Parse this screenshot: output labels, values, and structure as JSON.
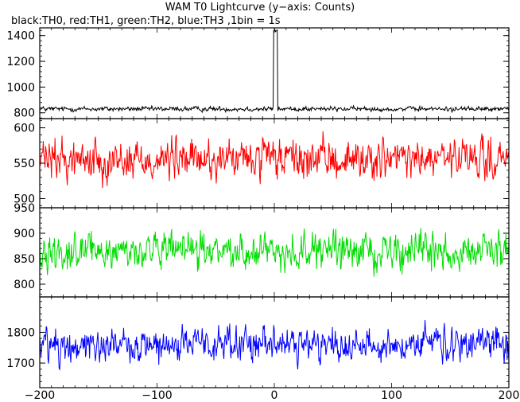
{
  "chart_data": {
    "type": "line",
    "title": "WAM T0 Lightcurve (y−axis: Counts)",
    "subtitle": "black:TH0, red:TH1, green:TH2, blue:TH3 ,1bin = 1s",
    "x_range": [
      -200,
      200
    ],
    "x_ticks": [
      -200,
      -100,
      0,
      100,
      200
    ],
    "shared_x_axis": true,
    "series": [
      {
        "color": "#000000",
        "ylim": [
          755,
          1460
        ],
        "y_ticks": [
          800,
          1000,
          1200,
          1400
        ],
        "baseline_approx": 830,
        "noise_amplitude_approx": 30,
        "spike": {
          "x": 1,
          "peak": 1450,
          "width_s": 3
        }
      },
      {
        "color": "#ff0000",
        "ylim": [
          487,
          613
        ],
        "y_ticks": [
          500,
          550,
          600
        ],
        "baseline_approx": 555,
        "noise_amplitude_approx": 45
      },
      {
        "color": "#00dd00",
        "ylim": [
          775,
          950
        ],
        "y_ticks": [
          800,
          850,
          900,
          950
        ],
        "baseline_approx": 865,
        "noise_amplitude_approx": 55
      },
      {
        "color": "#0000ff",
        "ylim": [
          1620,
          1915
        ],
        "y_ticks": [
          1700,
          1800
        ],
        "baseline_approx": 1760,
        "noise_amplitude_approx": 90
      }
    ]
  }
}
